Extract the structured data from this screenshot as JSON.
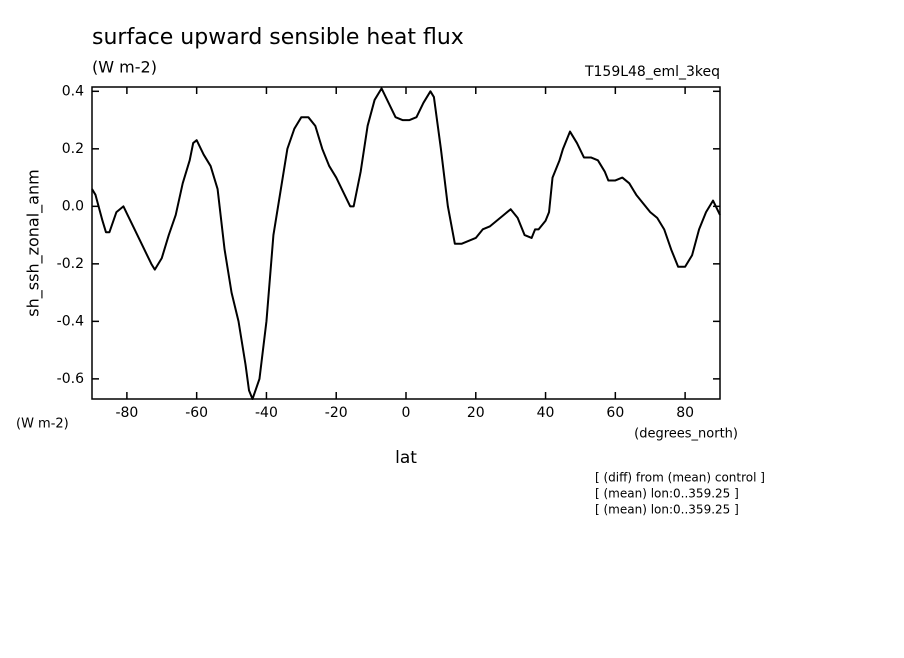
{
  "chart_data": {
    "type": "line",
    "title": "surface upward sensible heat flux",
    "units": "(W m-2)",
    "run_label": "T159L48_eml_3keq",
    "y_label": "sh_ssh_zonal_anm",
    "y_units": "(W m-2)",
    "x_units": "(degrees_north)",
    "x_label": "lat",
    "notes": [
      "[ (diff) from (mean) control ]",
      "[ (mean) lon:0..359.25 ]",
      "[ (mean) lon:0..359.25 ]"
    ],
    "color": "#000000",
    "x": [
      -90,
      -89,
      -87,
      -86,
      -85,
      -83,
      -81,
      -79,
      -77,
      -75,
      -73,
      -72,
      -70,
      -68,
      -66,
      -64,
      -62,
      -61,
      -60,
      -58,
      -56,
      -54,
      -52,
      -50,
      -48,
      -46,
      -45,
      -44,
      -42,
      -40,
      -38,
      -36,
      -34,
      -32,
      -30,
      -28,
      -26,
      -24,
      -22,
      -20,
      -18,
      -16,
      -15,
      -13,
      -11,
      -9,
      -7,
      -5,
      -3,
      -1,
      1,
      3,
      5,
      7,
      8,
      10,
      12,
      14,
      16,
      18,
      20,
      22,
      24,
      26,
      28,
      30,
      32,
      34,
      36,
      37,
      38,
      40,
      41,
      42,
      44,
      45,
      47,
      49,
      51,
      53,
      55,
      57,
      58,
      60,
      62,
      64,
      66,
      68,
      70,
      72,
      74,
      76,
      78,
      80,
      82,
      84,
      86,
      88,
      90
    ],
    "values": [
      0.06,
      0.04,
      -0.05,
      -0.09,
      -0.09,
      -0.02,
      0.0,
      -0.05,
      -0.1,
      -0.15,
      -0.2,
      -0.22,
      -0.18,
      -0.1,
      -0.03,
      0.08,
      0.16,
      0.22,
      0.23,
      0.18,
      0.14,
      0.06,
      -0.15,
      -0.3,
      -0.4,
      -0.55,
      -0.64,
      -0.67,
      -0.6,
      -0.4,
      -0.1,
      0.05,
      0.2,
      0.27,
      0.31,
      0.31,
      0.28,
      0.2,
      0.14,
      0.1,
      0.05,
      0.0,
      0.0,
      0.12,
      0.28,
      0.37,
      0.41,
      0.36,
      0.31,
      0.3,
      0.3,
      0.31,
      0.36,
      0.4,
      0.38,
      0.2,
      0.0,
      -0.13,
      -0.13,
      -0.12,
      -0.11,
      -0.08,
      -0.07,
      -0.05,
      -0.03,
      -0.01,
      -0.04,
      -0.1,
      -0.11,
      -0.08,
      -0.08,
      -0.05,
      -0.02,
      0.1,
      0.16,
      0.2,
      0.26,
      0.22,
      0.17,
      0.17,
      0.16,
      0.12,
      0.09,
      0.09,
      0.1,
      0.08,
      0.04,
      0.01,
      -0.02,
      -0.04,
      -0.08,
      -0.15,
      -0.21,
      -0.21,
      -0.17,
      -0.08,
      -0.02,
      0.02,
      -0.03
    ],
    "xlim": [
      -90,
      90
    ],
    "xticks": [
      -80,
      -60,
      -40,
      -20,
      0,
      20,
      40,
      60,
      80
    ],
    "ylim": [
      -0.67,
      0.415
    ],
    "yticks": [
      -0.6,
      -0.4,
      -0.2,
      {
        "value": 0,
        "label": "0.0"
      },
      0.2,
      0.4
    ]
  }
}
